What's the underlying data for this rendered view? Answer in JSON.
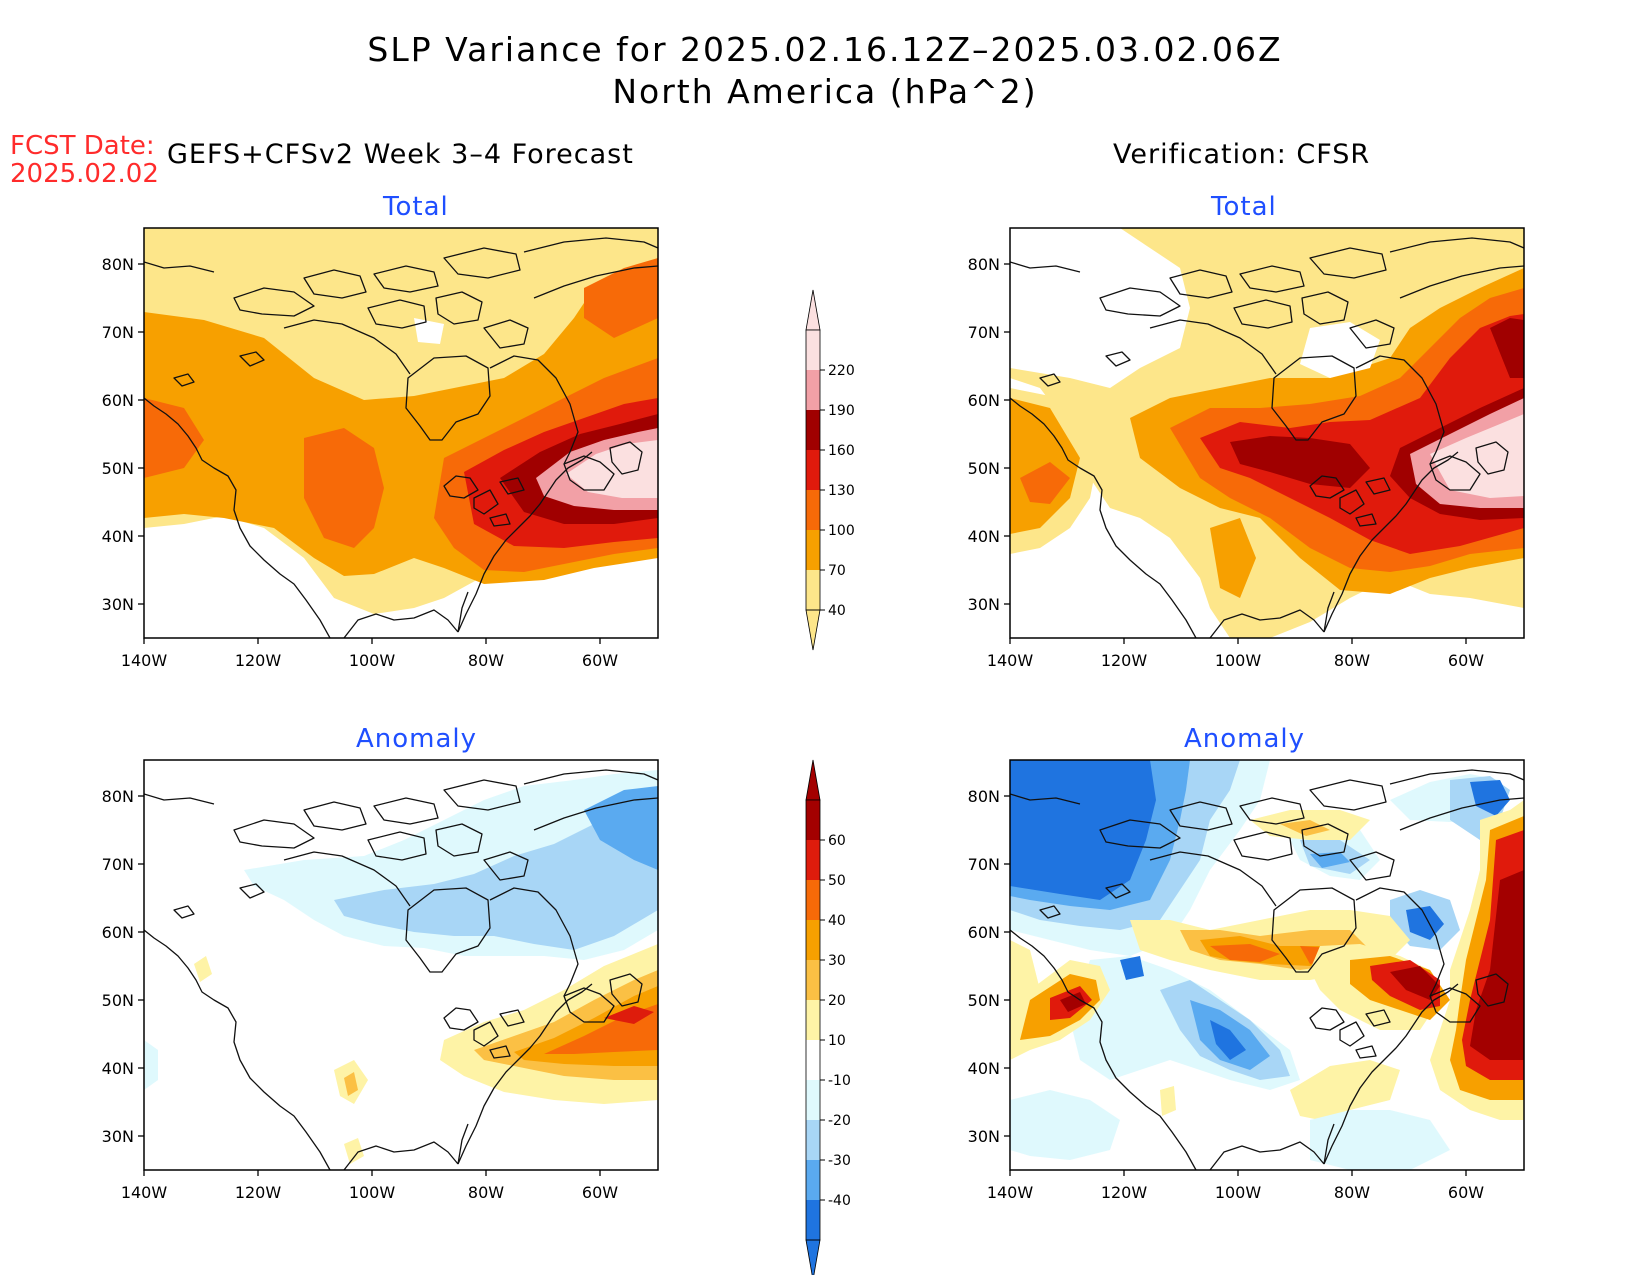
{
  "title": {
    "line1": "SLP Variance for 2025.02.16.12Z–2025.03.02.06Z",
    "line2": "North America (hPa^2)"
  },
  "fcst": {
    "label": "FCST Date:",
    "date": "2025.02.02"
  },
  "left_header": "GEFS+CFSv2 Week 3–4 Forecast",
  "right_header": "Verification: CFSR",
  "panel_titles": {
    "total": "Total",
    "anomaly": "Anomaly"
  },
  "axes": {
    "lon_labels": [
      "140W",
      "120W",
      "100W",
      "80W",
      "60W"
    ],
    "lat_labels": [
      "80N",
      "70N",
      "60N",
      "50N",
      "40N",
      "30N"
    ]
  },
  "colorbars": {
    "total": {
      "ticks": [
        "220",
        "190",
        "160",
        "130",
        "100",
        "70",
        "40"
      ],
      "colors": [
        "#fbe0e0",
        "#f2a0a6",
        "#a00000",
        "#e01a0c",
        "#f76a08",
        "#f7a000",
        "#fde68a"
      ]
    },
    "anomaly": {
      "ticks": [
        "60",
        "50",
        "40",
        "30",
        "20",
        "10",
        "-10",
        "-20",
        "-30",
        "-40"
      ],
      "colors": [
        "#a30000",
        "#de1c0c",
        "#f76a08",
        "#f7a000",
        "#fbc044",
        "#fef3a6",
        "#ffffff",
        "#dff9fd",
        "#a8d6f6",
        "#5aaaf0",
        "#1f74e0"
      ]
    }
  },
  "palette": {
    "t40": "#fde68a",
    "t70": "#f7a000",
    "t100": "#f76a08",
    "t130": "#e01a0c",
    "t160": "#a00000",
    "t190": "#f2a0a6",
    "t220": "#fbe0e0",
    "a_pos1": "#fef3a6",
    "a_pos2": "#fbc044",
    "a_pos3": "#f7a000",
    "a_pos4": "#f76a08",
    "a_pos5": "#de1c0c",
    "a_pos6": "#a30000",
    "a_neg1": "#dff9fd",
    "a_neg2": "#a8d6f6",
    "a_neg3": "#5aaaf0",
    "a_neg4": "#1f74e0"
  }
}
